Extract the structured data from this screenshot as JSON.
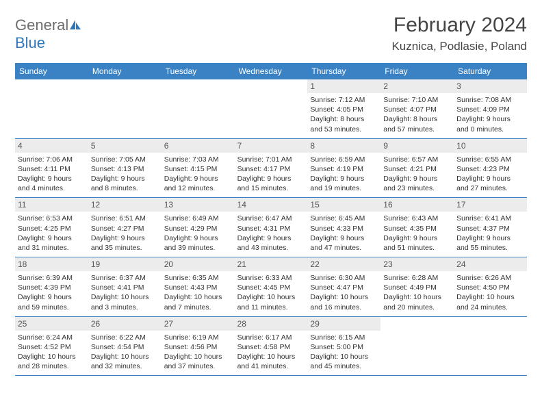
{
  "colors": {
    "header_bg": "#3b82c4",
    "header_text": "#ffffff",
    "daynum_bg": "#ececec",
    "daynum_text": "#555555",
    "body_text": "#333333",
    "title_text": "#444444",
    "logo_gray": "#6e6e6e",
    "logo_blue": "#2f77bb",
    "row_border": "#3b82c4",
    "page_bg": "#ffffff"
  },
  "logo": {
    "text_general": "General",
    "text_blue": "Blue"
  },
  "title": "February 2024",
  "location": "Kuznica, Podlasie, Poland",
  "day_headers": [
    "Sunday",
    "Monday",
    "Tuesday",
    "Wednesday",
    "Thursday",
    "Friday",
    "Saturday"
  ],
  "weeks": [
    [
      null,
      null,
      null,
      null,
      {
        "n": "1",
        "sunrise": "Sunrise: 7:12 AM",
        "sunset": "Sunset: 4:05 PM",
        "dl1": "Daylight: 8 hours",
        "dl2": "and 53 minutes."
      },
      {
        "n": "2",
        "sunrise": "Sunrise: 7:10 AM",
        "sunset": "Sunset: 4:07 PM",
        "dl1": "Daylight: 8 hours",
        "dl2": "and 57 minutes."
      },
      {
        "n": "3",
        "sunrise": "Sunrise: 7:08 AM",
        "sunset": "Sunset: 4:09 PM",
        "dl1": "Daylight: 9 hours",
        "dl2": "and 0 minutes."
      }
    ],
    [
      {
        "n": "4",
        "sunrise": "Sunrise: 7:06 AM",
        "sunset": "Sunset: 4:11 PM",
        "dl1": "Daylight: 9 hours",
        "dl2": "and 4 minutes."
      },
      {
        "n": "5",
        "sunrise": "Sunrise: 7:05 AM",
        "sunset": "Sunset: 4:13 PM",
        "dl1": "Daylight: 9 hours",
        "dl2": "and 8 minutes."
      },
      {
        "n": "6",
        "sunrise": "Sunrise: 7:03 AM",
        "sunset": "Sunset: 4:15 PM",
        "dl1": "Daylight: 9 hours",
        "dl2": "and 12 minutes."
      },
      {
        "n": "7",
        "sunrise": "Sunrise: 7:01 AM",
        "sunset": "Sunset: 4:17 PM",
        "dl1": "Daylight: 9 hours",
        "dl2": "and 15 minutes."
      },
      {
        "n": "8",
        "sunrise": "Sunrise: 6:59 AM",
        "sunset": "Sunset: 4:19 PM",
        "dl1": "Daylight: 9 hours",
        "dl2": "and 19 minutes."
      },
      {
        "n": "9",
        "sunrise": "Sunrise: 6:57 AM",
        "sunset": "Sunset: 4:21 PM",
        "dl1": "Daylight: 9 hours",
        "dl2": "and 23 minutes."
      },
      {
        "n": "10",
        "sunrise": "Sunrise: 6:55 AM",
        "sunset": "Sunset: 4:23 PM",
        "dl1": "Daylight: 9 hours",
        "dl2": "and 27 minutes."
      }
    ],
    [
      {
        "n": "11",
        "sunrise": "Sunrise: 6:53 AM",
        "sunset": "Sunset: 4:25 PM",
        "dl1": "Daylight: 9 hours",
        "dl2": "and 31 minutes."
      },
      {
        "n": "12",
        "sunrise": "Sunrise: 6:51 AM",
        "sunset": "Sunset: 4:27 PM",
        "dl1": "Daylight: 9 hours",
        "dl2": "and 35 minutes."
      },
      {
        "n": "13",
        "sunrise": "Sunrise: 6:49 AM",
        "sunset": "Sunset: 4:29 PM",
        "dl1": "Daylight: 9 hours",
        "dl2": "and 39 minutes."
      },
      {
        "n": "14",
        "sunrise": "Sunrise: 6:47 AM",
        "sunset": "Sunset: 4:31 PM",
        "dl1": "Daylight: 9 hours",
        "dl2": "and 43 minutes."
      },
      {
        "n": "15",
        "sunrise": "Sunrise: 6:45 AM",
        "sunset": "Sunset: 4:33 PM",
        "dl1": "Daylight: 9 hours",
        "dl2": "and 47 minutes."
      },
      {
        "n": "16",
        "sunrise": "Sunrise: 6:43 AM",
        "sunset": "Sunset: 4:35 PM",
        "dl1": "Daylight: 9 hours",
        "dl2": "and 51 minutes."
      },
      {
        "n": "17",
        "sunrise": "Sunrise: 6:41 AM",
        "sunset": "Sunset: 4:37 PM",
        "dl1": "Daylight: 9 hours",
        "dl2": "and 55 minutes."
      }
    ],
    [
      {
        "n": "18",
        "sunrise": "Sunrise: 6:39 AM",
        "sunset": "Sunset: 4:39 PM",
        "dl1": "Daylight: 9 hours",
        "dl2": "and 59 minutes."
      },
      {
        "n": "19",
        "sunrise": "Sunrise: 6:37 AM",
        "sunset": "Sunset: 4:41 PM",
        "dl1": "Daylight: 10 hours",
        "dl2": "and 3 minutes."
      },
      {
        "n": "20",
        "sunrise": "Sunrise: 6:35 AM",
        "sunset": "Sunset: 4:43 PM",
        "dl1": "Daylight: 10 hours",
        "dl2": "and 7 minutes."
      },
      {
        "n": "21",
        "sunrise": "Sunrise: 6:33 AM",
        "sunset": "Sunset: 4:45 PM",
        "dl1": "Daylight: 10 hours",
        "dl2": "and 11 minutes."
      },
      {
        "n": "22",
        "sunrise": "Sunrise: 6:30 AM",
        "sunset": "Sunset: 4:47 PM",
        "dl1": "Daylight: 10 hours",
        "dl2": "and 16 minutes."
      },
      {
        "n": "23",
        "sunrise": "Sunrise: 6:28 AM",
        "sunset": "Sunset: 4:49 PM",
        "dl1": "Daylight: 10 hours",
        "dl2": "and 20 minutes."
      },
      {
        "n": "24",
        "sunrise": "Sunrise: 6:26 AM",
        "sunset": "Sunset: 4:50 PM",
        "dl1": "Daylight: 10 hours",
        "dl2": "and 24 minutes."
      }
    ],
    [
      {
        "n": "25",
        "sunrise": "Sunrise: 6:24 AM",
        "sunset": "Sunset: 4:52 PM",
        "dl1": "Daylight: 10 hours",
        "dl2": "and 28 minutes."
      },
      {
        "n": "26",
        "sunrise": "Sunrise: 6:22 AM",
        "sunset": "Sunset: 4:54 PM",
        "dl1": "Daylight: 10 hours",
        "dl2": "and 32 minutes."
      },
      {
        "n": "27",
        "sunrise": "Sunrise: 6:19 AM",
        "sunset": "Sunset: 4:56 PM",
        "dl1": "Daylight: 10 hours",
        "dl2": "and 37 minutes."
      },
      {
        "n": "28",
        "sunrise": "Sunrise: 6:17 AM",
        "sunset": "Sunset: 4:58 PM",
        "dl1": "Daylight: 10 hours",
        "dl2": "and 41 minutes."
      },
      {
        "n": "29",
        "sunrise": "Sunrise: 6:15 AM",
        "sunset": "Sunset: 5:00 PM",
        "dl1": "Daylight: 10 hours",
        "dl2": "and 45 minutes."
      },
      null,
      null
    ]
  ]
}
